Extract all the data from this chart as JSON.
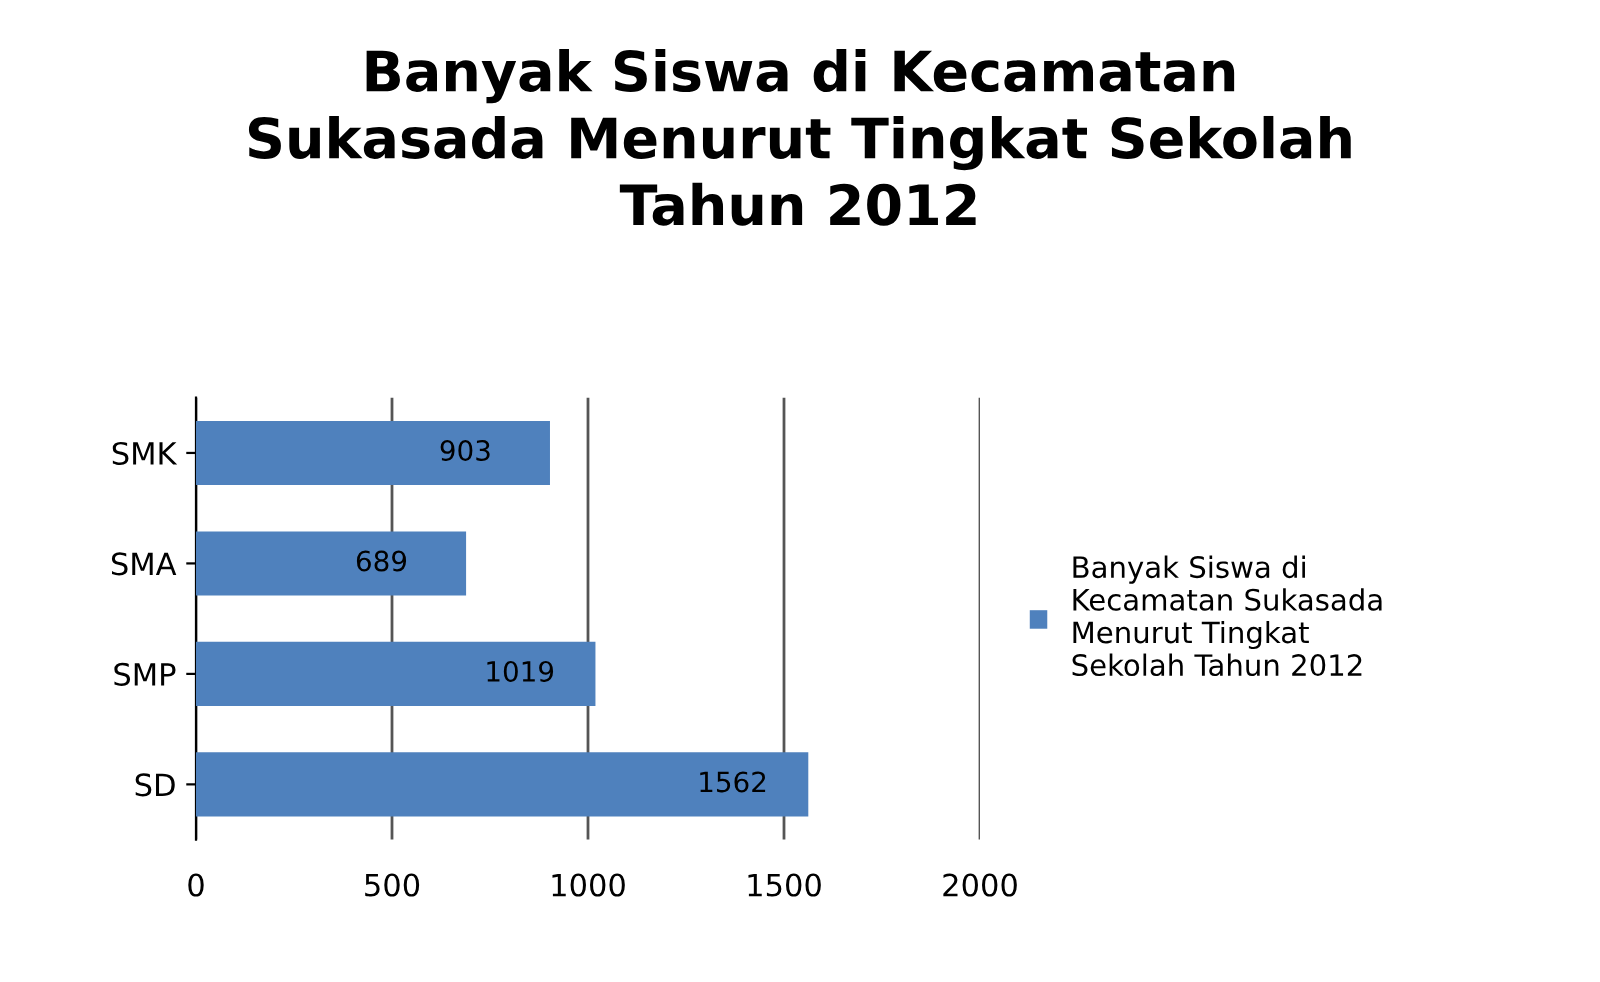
{
  "chart_data": {
    "type": "bar",
    "orientation": "horizontal",
    "title": "Banyak Siswa di Kecamatan\nSukasada Menurut Tingkat Sekolah\nTahun 2012",
    "categories": [
      "SMK",
      "SMA",
      "SMP",
      "SD"
    ],
    "series": [
      {
        "name": "Banyak Siswa di\nKecamatan Sukasada\nMenurut Tingkat\nSekolah Tahun 2012",
        "color": "#4f81bd",
        "values": [
          903,
          689,
          1019,
          1562
        ]
      }
    ],
    "xlim": [
      0,
      2000
    ],
    "xticks": [
      0,
      500,
      1000,
      1500,
      2000
    ],
    "grid": "x",
    "legend": "right",
    "data_labels": true
  }
}
